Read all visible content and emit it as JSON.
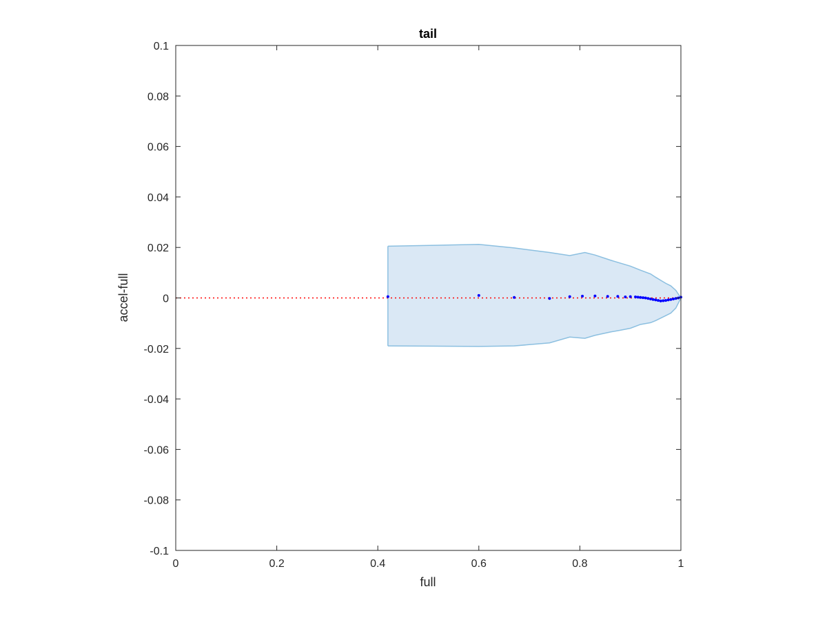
{
  "chart_data": {
    "type": "scatter",
    "title": "tail",
    "xlabel": "full",
    "ylabel": "accel-full",
    "xlim": [
      0,
      1
    ],
    "ylim": [
      -0.1,
      0.1
    ],
    "xticks": [
      0,
      0.2,
      0.4,
      0.6,
      0.8,
      1
    ],
    "xtick_labels": [
      "0",
      "0.2",
      "0.4",
      "0.6",
      "0.8",
      "1"
    ],
    "yticks": [
      0.1,
      0.08,
      0.06,
      0.04,
      0.02,
      0,
      -0.02,
      -0.04,
      -0.06,
      -0.08,
      -0.1
    ],
    "ytick_labels": [
      "0.1",
      "0.08",
      "0.06",
      "0.04",
      "0.02",
      "0",
      "-0.02",
      "-0.04",
      "-0.06",
      "-0.08",
      "-0.1"
    ],
    "grid": false,
    "reference_line": {
      "y": 0,
      "style": "dotted",
      "color": "#ff0000"
    },
    "band": {
      "color_fill": "#dae8f5",
      "color_edge": "#8bbfe0",
      "x": [
        0.42,
        0.6,
        0.67,
        0.74,
        0.78,
        0.81,
        0.83,
        0.86,
        0.88,
        0.9,
        0.92,
        0.94,
        0.95,
        0.96,
        0.97,
        0.98,
        0.99,
        1.0
      ],
      "upper": [
        0.0205,
        0.0212,
        0.0198,
        0.018,
        0.0168,
        0.018,
        0.017,
        0.015,
        0.0138,
        0.0126,
        0.011,
        0.0095,
        0.0082,
        0.007,
        0.0058,
        0.0048,
        0.003,
        0.0
      ],
      "lower": [
        -0.019,
        -0.0192,
        -0.019,
        -0.0178,
        -0.0155,
        -0.016,
        -0.0148,
        -0.0135,
        -0.0128,
        -0.012,
        -0.0105,
        -0.0098,
        -0.009,
        -0.008,
        -0.007,
        -0.006,
        -0.004,
        0.0
      ]
    },
    "points": {
      "color": "#0000ff",
      "x": [
        0.42,
        0.6,
        0.67,
        0.74,
        0.78,
        0.805,
        0.83,
        0.855,
        0.875,
        0.89,
        0.9,
        0.91,
        0.915,
        0.92,
        0.925,
        0.93,
        0.935,
        0.94,
        0.945,
        0.95,
        0.955,
        0.96,
        0.965,
        0.97,
        0.975,
        0.98,
        0.985,
        0.99,
        0.995,
        1.0
      ],
      "y": [
        0.0005,
        0.001,
        0.0002,
        -0.0002,
        0.0005,
        0.0007,
        0.0008,
        0.0006,
        0.0006,
        0.0004,
        0.0005,
        0.0004,
        0.0003,
        0.0002,
        0.0001,
        0.0,
        -0.0002,
        -0.0004,
        -0.0006,
        -0.0008,
        -0.001,
        -0.0012,
        -0.0011,
        -0.001,
        -0.0008,
        -0.0006,
        -0.0004,
        -0.0002,
        0.0,
        0.0003
      ]
    }
  }
}
